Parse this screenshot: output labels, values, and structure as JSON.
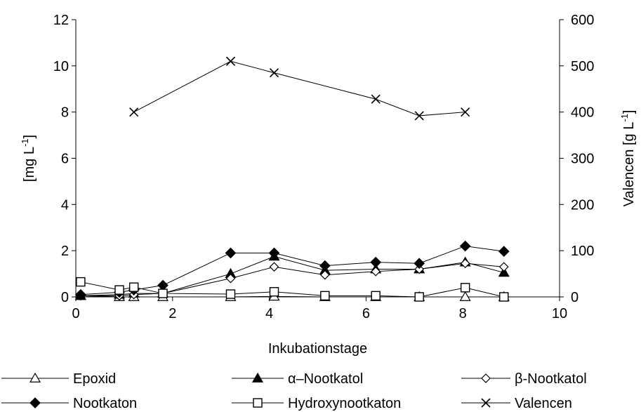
{
  "chart_data": {
    "type": "line",
    "xlabel": "Inkubationstage",
    "ylabel_left": "[mg L",
    "ylabel_left_sup": "-1",
    "ylabel_left_end": "]",
    "ylabel_right": "Valencen [g L",
    "ylabel_right_sup": "-1",
    "ylabel_right_end": "]",
    "xlim": [
      0,
      10
    ],
    "xticks": [
      "0",
      "2",
      "4",
      "6",
      "8",
      "10"
    ],
    "ylim_left": [
      0,
      12
    ],
    "yticks_left": [
      "0",
      "2",
      "4",
      "6",
      "8",
      "10",
      "12"
    ],
    "ylim_right": [
      0,
      600
    ],
    "yticks_right": [
      "0",
      "100",
      "200",
      "300",
      "400",
      "500",
      "600"
    ],
    "grid": false,
    "legend_position": "bottom",
    "series": [
      {
        "name": "Epoxid",
        "axis": "left",
        "marker": "triangle-open",
        "x": [
          0.1,
          0.9,
          1.2,
          1.8,
          3.2,
          4.1,
          5.15,
          6.2,
          7.1,
          8.05,
          8.85
        ],
        "y": [
          0.05,
          0.0,
          0.0,
          0.0,
          0.0,
          0.02,
          0.0,
          0.0,
          0.0,
          0.0,
          0.0
        ]
      },
      {
        "name": "α–Nootkatol",
        "axis": "left",
        "marker": "triangle-filled",
        "x": [
          0.1,
          0.9,
          1.2,
          1.8,
          3.2,
          4.1,
          5.15,
          6.2,
          7.1,
          8.05,
          8.85
        ],
        "y": [
          0.05,
          0.1,
          0.15,
          0.15,
          1.0,
          1.75,
          1.15,
          1.2,
          1.2,
          1.5,
          1.05
        ]
      },
      {
        "name": "β-Nootkatol",
        "axis": "left",
        "marker": "diamond-open",
        "x": [
          0.1,
          0.9,
          1.2,
          1.8,
          3.2,
          4.1,
          5.15,
          6.2,
          7.1,
          8.05,
          8.85
        ],
        "y": [
          0.05,
          0.05,
          0.1,
          0.15,
          0.8,
          1.3,
          0.95,
          1.1,
          1.2,
          1.45,
          1.3
        ]
      },
      {
        "name": "Nootkaton",
        "axis": "left",
        "marker": "diamond-filled",
        "x": [
          0.1,
          0.9,
          1.2,
          1.8,
          3.2,
          4.1,
          5.15,
          6.2,
          7.1,
          8.05,
          8.85
        ],
        "y": [
          0.1,
          0.2,
          0.3,
          0.5,
          1.9,
          1.9,
          1.35,
          1.5,
          1.45,
          2.2,
          1.97
        ]
      },
      {
        "name": "Hydroxynootkaton",
        "axis": "left",
        "marker": "square-open",
        "x": [
          0.1,
          0.9,
          1.2,
          1.8,
          3.2,
          4.1,
          5.15,
          6.2,
          7.1,
          8.05,
          8.85
        ],
        "y": [
          0.65,
          0.3,
          0.42,
          0.15,
          0.12,
          0.22,
          0.05,
          0.05,
          0.0,
          0.4,
          0.0
        ]
      },
      {
        "name": "Valencen",
        "axis": "right",
        "marker": "x",
        "x": [
          1.2,
          3.2,
          4.1,
          6.2,
          7.1,
          8.05
        ],
        "y": [
          400,
          510,
          485,
          428,
          392,
          400
        ]
      }
    ]
  }
}
